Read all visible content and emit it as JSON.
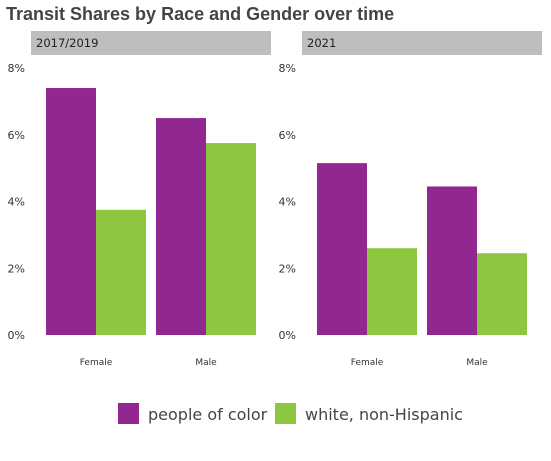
{
  "chart_data": {
    "type": "bar",
    "title": "Transit Shares by Race and Gender over time",
    "xlabel": "",
    "ylabel": "",
    "ylim": [
      0,
      8
    ],
    "yticks": [
      "0%",
      "2%",
      "4%",
      "6%",
      "8%"
    ],
    "legend_position": "bottom",
    "colors": {
      "people_of_color": "#92278f",
      "white_non_hispanic": "#8dc63f",
      "strip": "#bebebe"
    },
    "panels": [
      {
        "label": "2017/2019",
        "categories": [
          "Female",
          "Male"
        ],
        "series": [
          {
            "name": "people of color",
            "values": [
              7.4,
              6.5
            ]
          },
          {
            "name": "white, non-Hispanic",
            "values": [
              3.75,
              5.75
            ]
          }
        ]
      },
      {
        "label": "2021",
        "categories": [
          "Female",
          "Male"
        ],
        "series": [
          {
            "name": "people of color",
            "values": [
              5.15,
              4.45
            ]
          },
          {
            "name": "white, non-Hispanic",
            "values": [
              2.6,
              2.45
            ]
          }
        ]
      }
    ]
  }
}
